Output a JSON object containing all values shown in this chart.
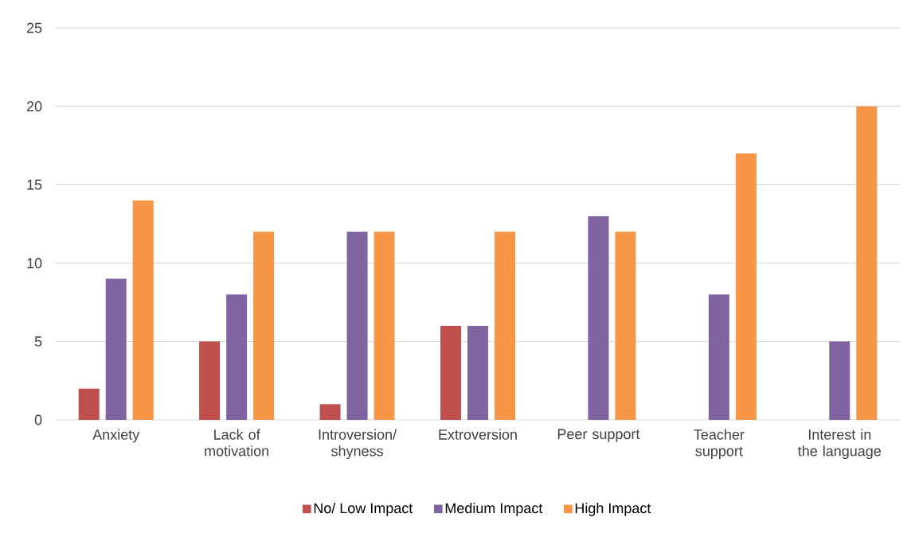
{
  "chart_data": {
    "type": "bar",
    "categories": [
      "Anxiety",
      "Lack of motivation",
      "Introversion/ shyness",
      "Extroversion",
      "Peer support",
      "Teacher support",
      "Interest in the language"
    ],
    "series": [
      {
        "name": "No/ Low Impact",
        "color": "#c0504d",
        "values": [
          2,
          5,
          1,
          6,
          0,
          0,
          0
        ]
      },
      {
        "name": "Medium Impact",
        "color": "#8064a2",
        "values": [
          9,
          8,
          12,
          6,
          13,
          8,
          5
        ]
      },
      {
        "name": "High Impact",
        "color": "#f79646",
        "values": [
          14,
          12,
          12,
          12,
          12,
          17,
          20
        ]
      }
    ],
    "ylim": [
      0,
      25
    ],
    "yticks": [
      0,
      5,
      10,
      15,
      20,
      25
    ],
    "grid": "y",
    "legend": "bottom"
  }
}
